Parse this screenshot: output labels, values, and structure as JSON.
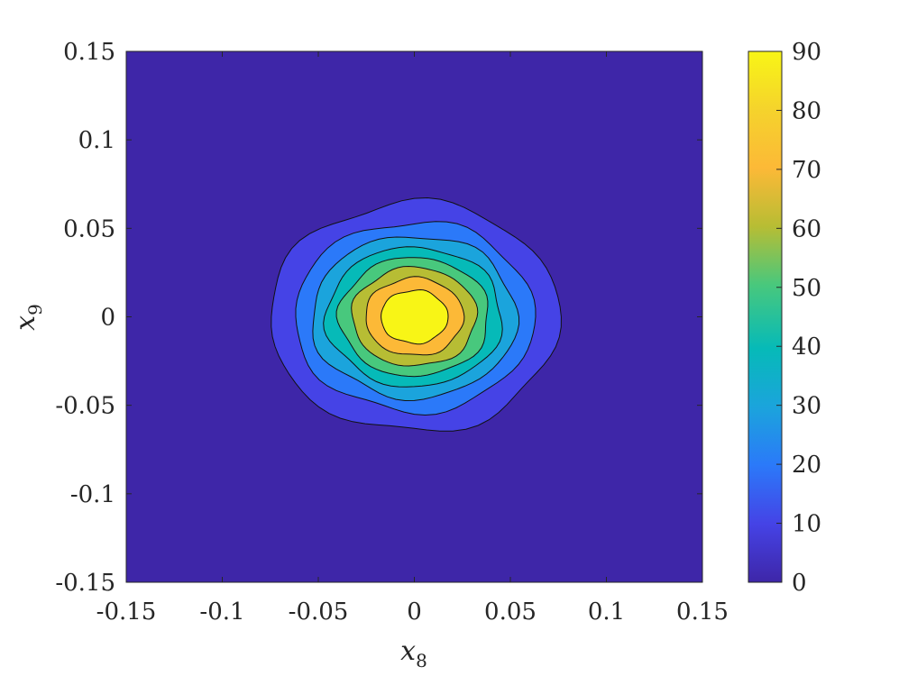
{
  "chart_data": {
    "type": "contour",
    "xlabel": "x",
    "xlabel_sub": "8",
    "ylabel": "x",
    "ylabel_sub": "9",
    "xlim": [
      -0.15,
      0.15
    ],
    "ylim": [
      -0.15,
      0.15
    ],
    "x_ticks": [
      -0.15,
      -0.1,
      -0.05,
      0,
      0.05,
      0.1,
      0.15
    ],
    "x_tick_labels": [
      "-0.15",
      "-0.1",
      "-0.05",
      "0",
      "0.05",
      "0.1",
      "0.15"
    ],
    "y_ticks": [
      0.15,
      0.1,
      0.05,
      0,
      -0.05,
      -0.1,
      -0.15
    ],
    "y_tick_labels": [
      "0.15",
      "0.1",
      "0.05",
      "0",
      "-0.05",
      "-0.1",
      "-0.15"
    ],
    "colorbar": {
      "range": [
        0,
        90
      ],
      "ticks": [
        0,
        10,
        20,
        30,
        40,
        50,
        60,
        70,
        80,
        90
      ],
      "tick_labels": [
        "0",
        "10",
        "20",
        "30",
        "40",
        "50",
        "60",
        "70",
        "80",
        "90"
      ],
      "colormap": "parula"
    },
    "levels": [
      0,
      10,
      20,
      30,
      40,
      50,
      60,
      70,
      80
    ],
    "level_colors": [
      "#3e26a8",
      "#4543e6",
      "#2b79f9",
      "#1ba4dc",
      "#06bab8",
      "#48c87d",
      "#b7bd34",
      "#fcb937",
      "#f8f516"
    ],
    "peak": {
      "x": 0.0,
      "y": 0.0,
      "value": 90
    },
    "contour_shape": {
      "sigma_x": 0.036,
      "sigma_y": 0.031,
      "center_x": 0.0,
      "center_y": 0.0
    },
    "grid": false
  }
}
